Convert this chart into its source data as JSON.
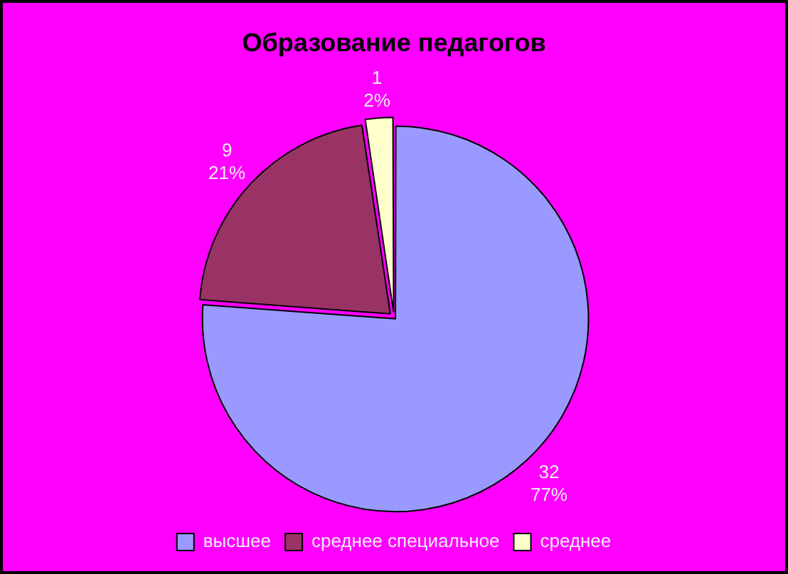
{
  "chart_data": {
    "type": "pie",
    "title": "Образование педагогов",
    "categories": [
      "высшее",
      "среднее специальное",
      "среднее"
    ],
    "values": [
      32,
      9,
      1
    ],
    "colors": [
      "#9999ff",
      "#993366",
      "#ffffcc"
    ],
    "value_labels": [
      "32\n77%",
      "9\n21%",
      "1\n2%"
    ],
    "legend": "bottom"
  }
}
